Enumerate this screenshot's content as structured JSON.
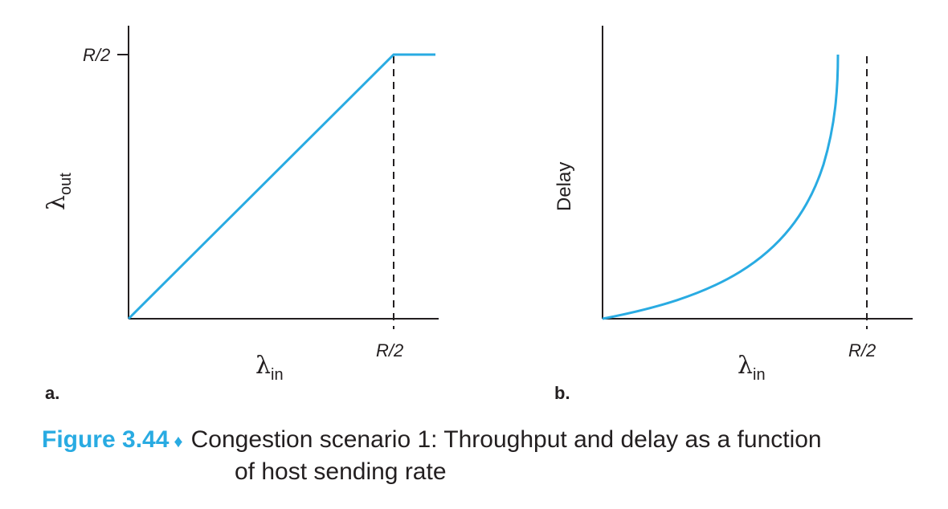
{
  "panels": [
    {
      "letter": "a.",
      "y_axis": {
        "symbol": "λ",
        "subscript": "out"
      },
      "x_axis": {
        "symbol": "λ",
        "subscript": "in"
      },
      "tick_labels": {
        "y": "R/2",
        "x": "R/2"
      },
      "curve": "linear rise to R/2, then flat",
      "color": "#29abe2"
    },
    {
      "letter": "b.",
      "y_axis": {
        "label": "Delay"
      },
      "x_axis": {
        "symbol": "λ",
        "subscript": "in"
      },
      "tick_labels": {
        "x": "R/2"
      },
      "curve": "delay grows without bound as λin approaches R/2",
      "color": "#29abe2"
    }
  ],
  "caption": {
    "figure_number": "Figure 3.44",
    "separator": "♦",
    "line1": "Congestion scenario 1: Throughput and delay as a function",
    "line2": "of host sending rate"
  }
}
